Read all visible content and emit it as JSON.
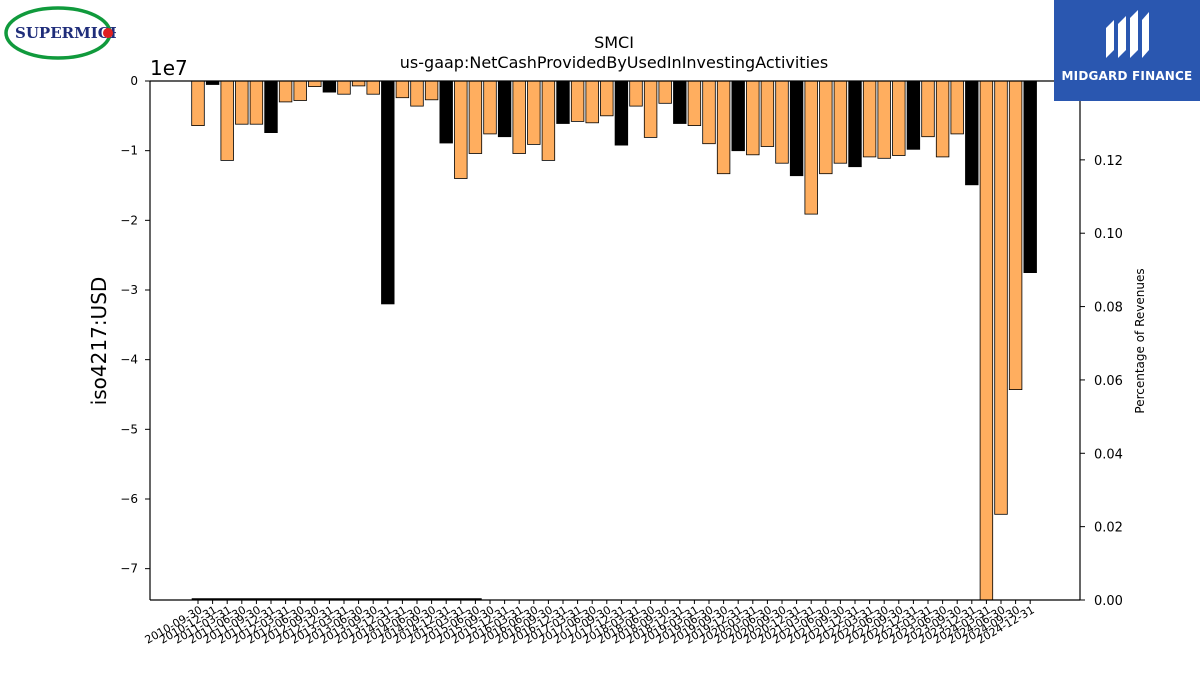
{
  "logos": {
    "left_text": "SUPERMICRO",
    "right_text": "MIDGARD FINANCE"
  },
  "colors": {
    "bar_orange": "#ffae5f",
    "bar_black": "#000000",
    "logo_right_bg": "#2a57b0",
    "logo_left_green": "#109a3c",
    "logo_left_red": "#e02020",
    "logo_left_navy": "#1f2d7a"
  },
  "chart_data": {
    "type": "bar",
    "title": "SMCI",
    "subtitle": "us-gaap:NetCashProvidedByUsedInInvestingActivities",
    "ylabel": "iso4217:USD",
    "y_offset_text": "1e7",
    "y2label": "Percentage of Revenues",
    "ylim": [
      -74500000,
      0
    ],
    "y_ticks": [
      0,
      -10000000,
      -20000000,
      -30000000,
      -40000000,
      -50000000,
      -60000000,
      -70000000
    ],
    "y_tick_labels": [
      "0",
      "−1",
      "−2",
      "−3",
      "−4",
      "−5",
      "−6",
      "−7"
    ],
    "y2lim": [
      0,
      0.1415
    ],
    "y2_ticks": [
      0.0,
      0.02,
      0.04,
      0.06,
      0.08,
      0.1,
      0.12
    ],
    "y2_tick_labels": [
      "0.00",
      "0.02",
      "0.04",
      "0.06",
      "0.08",
      "0.10",
      "0.12"
    ],
    "grid": false,
    "categories": [
      "2010-09-30",
      "2010-12-31",
      "2011-03-31",
      "2011-06-30",
      "2011-09-30",
      "2011-12-31",
      "2012-03-31",
      "2012-06-30",
      "2012-09-30",
      "2012-12-31",
      "2013-03-31",
      "2013-06-30",
      "2013-09-30",
      "2013-12-31",
      "2014-03-31",
      "2014-06-30",
      "2014-09-30",
      "2014-12-31",
      "2015-03-31",
      "2015-06-30",
      "2015-09-30",
      "2015-12-31",
      "2016-03-31",
      "2016-06-30",
      "2016-09-30",
      "2016-12-31",
      "2017-03-31",
      "2017-06-30",
      "2017-09-30",
      "2017-12-31",
      "2018-03-31",
      "2018-06-30",
      "2018-09-30",
      "2018-12-31",
      "2019-03-31",
      "2019-06-30",
      "2019-09-30",
      "2019-12-31",
      "2020-03-31",
      "2020-06-30",
      "2020-09-30",
      "2020-12-31",
      "2021-03-31",
      "2021-06-30",
      "2021-09-30",
      "2021-12-31",
      "2022-03-31",
      "2022-06-30",
      "2022-09-30",
      "2022-12-31",
      "2023-03-31",
      "2023-06-30",
      "2023-09-30",
      "2023-12-31",
      "2024-03-31",
      "2024-06-30",
      "2024-09-30",
      "2024-12-31"
    ],
    "series": [
      {
        "values": [
          -6400000,
          -500000,
          -11400000,
          -6200000,
          -6200000,
          -7400000,
          -3000000,
          -2800000,
          -800000,
          -1600000,
          -1900000,
          -700000,
          -1900000,
          -32000000,
          -2400000,
          -3600000,
          -2700000,
          -8900000,
          -14000000,
          -10400000,
          -7600000,
          -8000000,
          -10400000,
          -9100000,
          -11400000,
          -6100000,
          -5800000,
          -6000000,
          -5000000,
          -9200000,
          -3600000,
          -8100000,
          -3200000,
          -6100000,
          -6400000,
          -9000000,
          -13300000,
          -10000000,
          -10600000,
          -9400000,
          -11800000,
          -13600000,
          -19100000,
          -13300000,
          -11800000,
          -12300000,
          -10900000,
          -11100000,
          -10700000,
          -9800000,
          -8000000,
          -10900000,
          -7600000,
          -14900000,
          -74500000,
          -62200000,
          -44300000,
          -27500000
        ],
        "colors": [
          "orange",
          "black",
          "orange",
          "orange",
          "orange",
          "black",
          "orange",
          "orange",
          "orange",
          "black",
          "orange",
          "orange",
          "orange",
          "black",
          "orange",
          "orange",
          "orange",
          "black",
          "orange",
          "orange",
          "orange",
          "black",
          "orange",
          "orange",
          "orange",
          "black",
          "orange",
          "orange",
          "orange",
          "black",
          "orange",
          "orange",
          "orange",
          "black",
          "orange",
          "orange",
          "orange",
          "black",
          "orange",
          "orange",
          "orange",
          "black",
          "orange",
          "orange",
          "orange",
          "black",
          "orange",
          "orange",
          "orange",
          "black",
          "orange",
          "orange",
          "orange",
          "black",
          "orange",
          "orange",
          "orange",
          "black"
        ]
      }
    ]
  }
}
